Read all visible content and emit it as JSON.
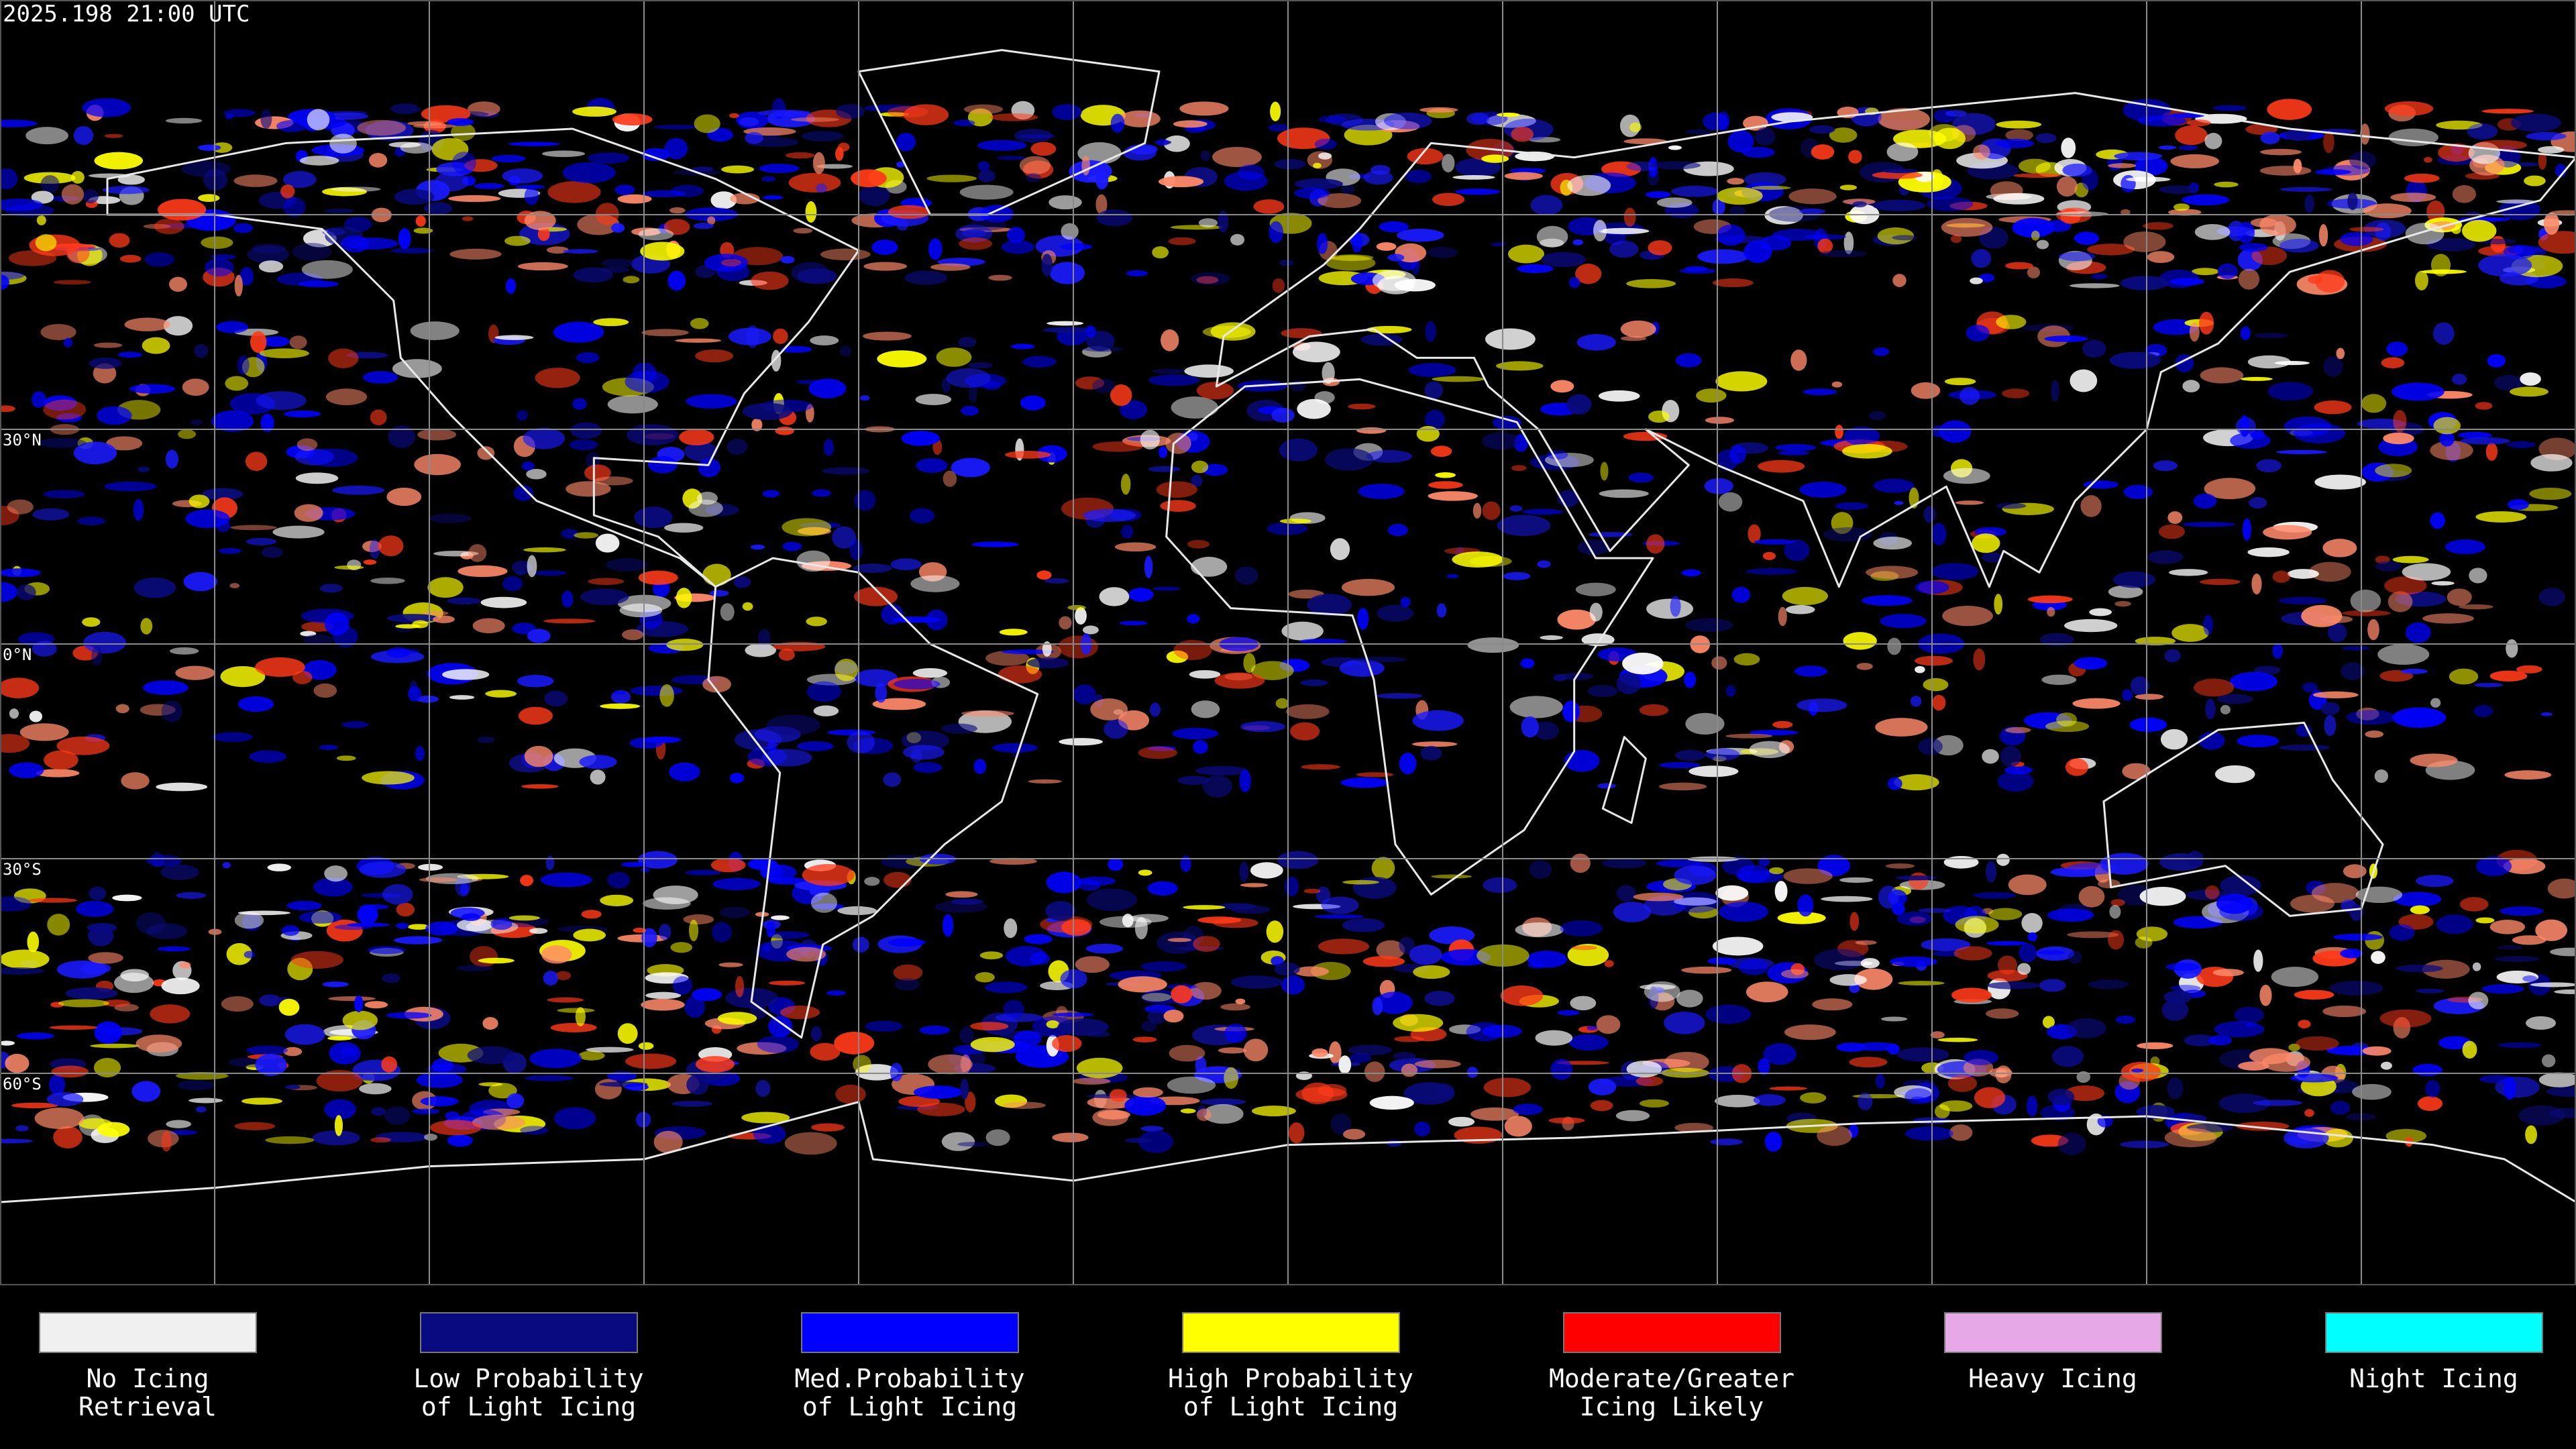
{
  "header": {
    "timestamp": "2025.198 21:00 UTC"
  },
  "lat_labels": [
    {
      "lat": 30,
      "label": "30°N"
    },
    {
      "lat": 0,
      "label": "0°N"
    },
    {
      "lat": -30,
      "label": "30°S"
    },
    {
      "lat": -60,
      "label": "60°S"
    }
  ],
  "legend": {
    "items": [
      {
        "lines": [
          "No Icing",
          "Retrieval"
        ],
        "color": "#f0f0f0"
      },
      {
        "lines": [
          "Low Probability",
          "of Light Icing"
        ],
        "color": "#0a0a80"
      },
      {
        "lines": [
          "Med.Probability",
          "of Light Icing"
        ],
        "color": "#0000ff"
      },
      {
        "lines": [
          "High Probability",
          "of Light Icing"
        ],
        "color": "#ffff00"
      },
      {
        "lines": [
          "Moderate/Greater",
          "Icing Likely"
        ],
        "color": "#ff0000"
      },
      {
        "lines": [
          "Heavy Icing"
        ],
        "color": "#e6a8e6"
      },
      {
        "lines": [
          "Night Icing"
        ],
        "color": "#00ffff"
      }
    ]
  }
}
